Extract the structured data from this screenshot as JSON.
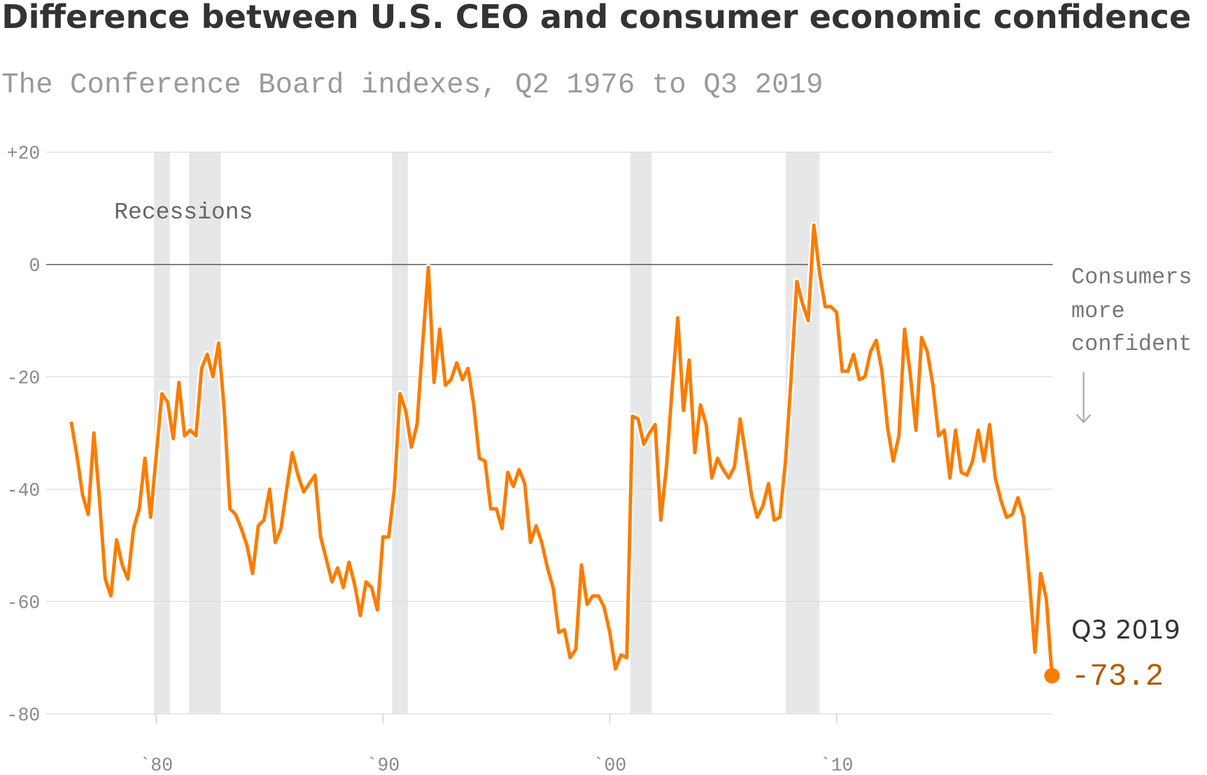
{
  "chart_data": {
    "type": "line",
    "title": "Difference between U.S. CEO and consumer economic confidence",
    "subtitle": "The Conference Board indexes, Q2 1976 to Q3 2019",
    "annotations": {
      "recessions": "Recessions",
      "side_note": [
        "Consumers",
        "more",
        "confident"
      ],
      "end_label": "Q3 2019"
    },
    "recessions": [
      [
        1979.9,
        1980.6
      ],
      [
        1981.45,
        1982.85
      ],
      [
        1990.4,
        1991.1
      ],
      [
        2000.9,
        2001.85
      ],
      [
        2007.75,
        2009.25
      ]
    ],
    "recession_color": "#e6e7e9",
    "xlim": [
      1975.15,
      2019.5
    ],
    "xticks": [
      {
        "value": 1980,
        "label": "`80"
      },
      {
        "value": 1990,
        "label": "`90"
      },
      {
        "value": 2000,
        "label": "`00"
      },
      {
        "value": 2010,
        "label": "`10"
      }
    ],
    "ylim": [
      -80,
      20
    ],
    "yticks": [
      {
        "value": 20,
        "label": "+20"
      },
      0,
      -20,
      -40,
      -60,
      -80
    ],
    "grid": true,
    "x": [
      1976.25,
      1976.5,
      1976.75,
      1977,
      1977.25,
      1977.5,
      1977.75,
      1978,
      1978.25,
      1978.5,
      1978.75,
      1979,
      1979.25,
      1979.5,
      1979.75,
      1980,
      1980.25,
      1980.5,
      1980.75,
      1981,
      1981.25,
      1981.5,
      1981.75,
      1982,
      1982.25,
      1982.5,
      1982.75,
      1983,
      1983.25,
      1983.5,
      1983.75,
      1984,
      1984.25,
      1984.5,
      1984.75,
      1985,
      1985.25,
      1985.5,
      1985.75,
      1986,
      1986.25,
      1986.5,
      1986.75,
      1987,
      1987.25,
      1987.5,
      1987.75,
      1988,
      1988.25,
      1988.5,
      1988.75,
      1989,
      1989.25,
      1989.5,
      1989.75,
      1990,
      1990.25,
      1990.5,
      1990.75,
      1991,
      1991.25,
      1991.5,
      1991.75,
      1992,
      1992.25,
      1992.5,
      1992.75,
      1993,
      1993.25,
      1993.5,
      1993.75,
      1994,
      1994.25,
      1994.5,
      1994.75,
      1995,
      1995.25,
      1995.5,
      1995.75,
      1996,
      1996.25,
      1996.5,
      1996.75,
      1997,
      1997.25,
      1997.5,
      1997.75,
      1998,
      1998.25,
      1998.5,
      1998.75,
      1999,
      1999.25,
      1999.5,
      1999.75,
      2000,
      2000.25,
      2000.5,
      2000.75,
      2001,
      2001.25,
      2001.5,
      2001.75,
      2002,
      2002.25,
      2002.5,
      2002.75,
      2003,
      2003.25,
      2003.5,
      2003.75,
      2004,
      2004.25,
      2004.5,
      2004.75,
      2005,
      2005.25,
      2005.5,
      2005.75,
      2006,
      2006.25,
      2006.5,
      2006.75,
      2007,
      2007.25,
      2007.5,
      2007.75,
      2008,
      2008.25,
      2008.5,
      2008.75,
      2009,
      2009.25,
      2009.5,
      2009.75,
      2010,
      2010.25,
      2010.5,
      2010.75,
      2011,
      2011.25,
      2011.5,
      2011.75,
      2012,
      2012.25,
      2012.5,
      2012.75,
      2013,
      2013.25,
      2013.5,
      2013.75,
      2014,
      2014.25,
      2014.5,
      2014.75,
      2015,
      2015.25,
      2015.5,
      2015.75,
      2016,
      2016.25,
      2016.5,
      2016.75,
      2017,
      2017.25,
      2017.5,
      2017.75,
      2018,
      2018.25,
      2018.5,
      2018.75,
      2019,
      2019.25,
      2019.5
    ],
    "series": [
      {
        "color": "#fb7c00",
        "values": [
          -28,
          -34,
          -41,
          -44.5,
          -30,
          -42,
          -56,
          -59,
          -49,
          -53.5,
          -56,
          -47,
          -43.5,
          -34.5,
          -45,
          -34,
          -23,
          -24.5,
          -31,
          -21,
          -30.5,
          -29.5,
          -30.5,
          -18.5,
          -16,
          -20,
          -14,
          -26,
          -43.5,
          -44.5,
          -47,
          -50,
          -55,
          -46.5,
          -45.5,
          -40,
          -49.5,
          -47,
          -40,
          -33.5,
          -37.5,
          -40.5,
          -39,
          -37.5,
          -48.5,
          -52.5,
          -56.5,
          -54,
          -57.5,
          -53,
          -57,
          -62.5,
          -56.5,
          -57.5,
          -61.5,
          -48.5,
          -48.5,
          -40,
          -23,
          -26,
          -32.5,
          -28.5,
          -14,
          -0.5,
          -21,
          -11.5,
          -21.5,
          -20.5,
          -17.5,
          -20.5,
          -18.5,
          -25,
          -34.5,
          -35,
          -43.5,
          -43.5,
          -47,
          -37,
          -39.5,
          -36.5,
          -39,
          -49.5,
          -46.5,
          -49.5,
          -54,
          -57.5,
          -65.5,
          -65,
          -70,
          -68.5,
          -53.5,
          -60.5,
          -59,
          -59,
          -61,
          -65.5,
          -72,
          -69.5,
          -70,
          -27,
          -27.5,
          -32,
          -30,
          -28.5,
          -45.5,
          -36,
          -22,
          -9.5,
          -26,
          -17,
          -33.5,
          -25,
          -28.5,
          -38,
          -34.5,
          -36.5,
          -38,
          -36,
          -27.5,
          -34,
          -41,
          -45,
          -43,
          -39,
          -45.5,
          -45,
          -35,
          -20,
          -3,
          -7,
          -10,
          7,
          -1.5,
          -7.5,
          -7.5,
          -8.5,
          -19,
          -19,
          -16,
          -20.5,
          -20,
          -15.5,
          -13.5,
          -19,
          -29,
          -35,
          -30.5,
          -11.5,
          -19.5,
          -29.5,
          -13,
          -15.5,
          -21.5,
          -30.5,
          -29.5,
          -38,
          -29.5,
          -37,
          -37.5,
          -35,
          -29.5,
          -35,
          -28.5,
          -38,
          -42,
          -45,
          -44.5,
          -41.5,
          -45,
          -56,
          -69,
          -55,
          -59.5,
          -73.2
        ],
        "value_labels": {
          "173": "-73.2"
        },
        "label_color": "#b35900"
      }
    ]
  }
}
